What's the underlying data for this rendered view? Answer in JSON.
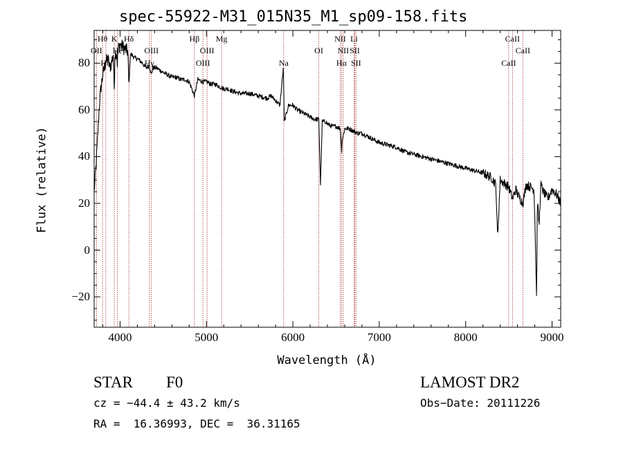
{
  "chart_data": {
    "type": "line",
    "title": "spec-55922-M31_015N35_M1_sp09-158.fits",
    "xlabel": "Wavelength (Å)",
    "ylabel": "Flux (relative)",
    "xlim": [
      3700,
      9100
    ],
    "ylim": [
      -33,
      94
    ],
    "xticks": [
      4000,
      5000,
      6000,
      7000,
      8000,
      9000
    ],
    "yticks": [
      -20,
      0,
      20,
      40,
      60,
      80
    ],
    "grid": false,
    "line_color": "#000000",
    "marker_color": "#a52a2a",
    "spectrum_anchors": {
      "x": [
        3700,
        3720,
        3740,
        3760,
        3780,
        3800,
        3830,
        3860,
        3880,
        3900,
        3920,
        3933,
        3940,
        3960,
        3968,
        3980,
        4000,
        4030,
        4060,
        4090,
        4102,
        4120,
        4150,
        4180,
        4200,
        4230,
        4260,
        4300,
        4340,
        4361,
        4380,
        4420,
        4460,
        4500,
        4550,
        4600,
        4650,
        4700,
        4750,
        4800,
        4861,
        4900,
        4959,
        5007,
        5050,
        5100,
        5150,
        5200,
        5250,
        5300,
        5400,
        5500,
        5600,
        5700,
        5750,
        5800,
        5850,
        5890,
        5900,
        5950,
        6000,
        6050,
        6100,
        6150,
        6200,
        6250,
        6300,
        6320,
        6340,
        6380,
        6400,
        6450,
        6500,
        6550,
        6563,
        6570,
        6600,
        6650,
        6700,
        6750,
        6800,
        6900,
        7000,
        7100,
        7200,
        7300,
        7400,
        7500,
        7600,
        7700,
        7800,
        7900,
        8000,
        8100,
        8200,
        8250,
        8300,
        8350,
        8370,
        8400,
        8498,
        8542,
        8580,
        8600,
        8662,
        8700,
        8750,
        8790,
        8800,
        8820,
        8830,
        8850,
        8870,
        8900,
        8950,
        9000,
        9050,
        9100
      ],
      "y": [
        25,
        35,
        48,
        62,
        70,
        75,
        80,
        82,
        78,
        80,
        84,
        68,
        84,
        85,
        80,
        86,
        88,
        87,
        86,
        85,
        70,
        84,
        83,
        82,
        82,
        81,
        80,
        78,
        79,
        75,
        78,
        78,
        77,
        76,
        75,
        74,
        74,
        73,
        73,
        72,
        66,
        73,
        72,
        72,
        71,
        71,
        70,
        69,
        69,
        68,
        67,
        67,
        66,
        65,
        66,
        64,
        62,
        78,
        55,
        62,
        62,
        60,
        59,
        58,
        57,
        56,
        56,
        28,
        55,
        55,
        54,
        53,
        53,
        52,
        42,
        47,
        52,
        52,
        51,
        50,
        50,
        48,
        46,
        45,
        44,
        42,
        41,
        40,
        39,
        38,
        37,
        36,
        35,
        34,
        33,
        32,
        31,
        28,
        5,
        30,
        27,
        22,
        26,
        24,
        20,
        28,
        27,
        26,
        15,
        -20,
        22,
        10,
        28,
        25,
        22,
        26,
        24,
        20
      ]
    },
    "line_markers": [
      {
        "label": "Hθ",
        "wavelength": 3797,
        "row": 1
      },
      {
        "label": "OII",
        "wavelength": 3727,
        "row": 2
      },
      {
        "label": "Hη",
        "wavelength": 3835,
        "row": 3
      },
      {
        "label": "K",
        "wavelength": 3933,
        "row": 1
      },
      {
        "label": "He",
        "wavelength": 3970,
        "row": 2
      },
      {
        "label": "Hδ",
        "wavelength": 4102,
        "row": 1
      },
      {
        "label": "Hγ",
        "wavelength": 4340,
        "row": 3
      },
      {
        "label": "OIII",
        "wavelength": 4363,
        "row": 2
      },
      {
        "label": "Hβ",
        "wavelength": 4861,
        "row": 1
      },
      {
        "label": "OIII",
        "wavelength": 4959,
        "row": 3
      },
      {
        "label": "OIII",
        "wavelength": 5007,
        "row": 2
      },
      {
        "label": "Mg",
        "wavelength": 5175,
        "row": 1
      },
      {
        "label": "Na",
        "wavelength": 5894,
        "row": 3
      },
      {
        "label": "OI",
        "wavelength": 6300,
        "row": 2
      },
      {
        "label": "NII",
        "wavelength": 6548,
        "row": 1
      },
      {
        "label": "Hα",
        "wavelength": 6563,
        "row": 3
      },
      {
        "label": "NII",
        "wavelength": 6583,
        "row": 2
      },
      {
        "label": "Li",
        "wavelength": 6708,
        "row": 1
      },
      {
        "label": "SII",
        "wavelength": 6716,
        "row": 2
      },
      {
        "label": "SII",
        "wavelength": 6731,
        "row": 3
      },
      {
        "label": "CaII",
        "wavelength": 8498,
        "row": 3
      },
      {
        "label": "CaII",
        "wavelength": 8542,
        "row": 1
      },
      {
        "label": "CaII",
        "wavelength": 8662,
        "row": 2
      }
    ]
  },
  "footer": {
    "class_label": "STAR",
    "subclass": "F0",
    "survey": "LAMOST DR2",
    "cz": "cz = −44.4 ± 43.2 km/s",
    "obs_date": "Obs−Date: 20111226",
    "coords": "RA =  16.36993, DEC =  36.31165"
  }
}
